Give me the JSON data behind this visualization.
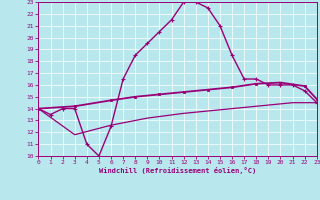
{
  "xlabel": "Windchill (Refroidissement éolien,°C)",
  "xlim": [
    0,
    23
  ],
  "ylim": [
    10,
    23
  ],
  "xticks": [
    0,
    1,
    2,
    3,
    4,
    5,
    6,
    7,
    8,
    9,
    10,
    11,
    12,
    13,
    14,
    15,
    16,
    17,
    18,
    19,
    20,
    21,
    22,
    23
  ],
  "yticks": [
    10,
    11,
    12,
    13,
    14,
    15,
    16,
    17,
    18,
    19,
    20,
    21,
    22,
    23
  ],
  "bg_color": "#b8e8ee",
  "line_color": "#990077",
  "line1_x": [
    0,
    1,
    2,
    3,
    4,
    5,
    6,
    7,
    8,
    9,
    10,
    11,
    12,
    13,
    14,
    15,
    16,
    17,
    18,
    19,
    20,
    21,
    22,
    23
  ],
  "line1_y": [
    14,
    13.5,
    14,
    14,
    11,
    10,
    12.5,
    16.5,
    18.5,
    19.5,
    20.5,
    21.5,
    23,
    23,
    22.5,
    21,
    18.5,
    16.5,
    16.5,
    16,
    16,
    16,
    15.5,
    14.5
  ],
  "line2_x": [
    0,
    3,
    6,
    8,
    10,
    12,
    14,
    16,
    18,
    20,
    22,
    23
  ],
  "line2_y": [
    14,
    14.2,
    14.7,
    15.0,
    15.2,
    15.4,
    15.6,
    15.8,
    16.1,
    16.2,
    15.9,
    14.8
  ],
  "line3_x": [
    0,
    3,
    6,
    9,
    12,
    15,
    18,
    21,
    23
  ],
  "line3_y": [
    14,
    11.8,
    12.6,
    13.2,
    13.6,
    13.9,
    14.2,
    14.5,
    14.5
  ]
}
